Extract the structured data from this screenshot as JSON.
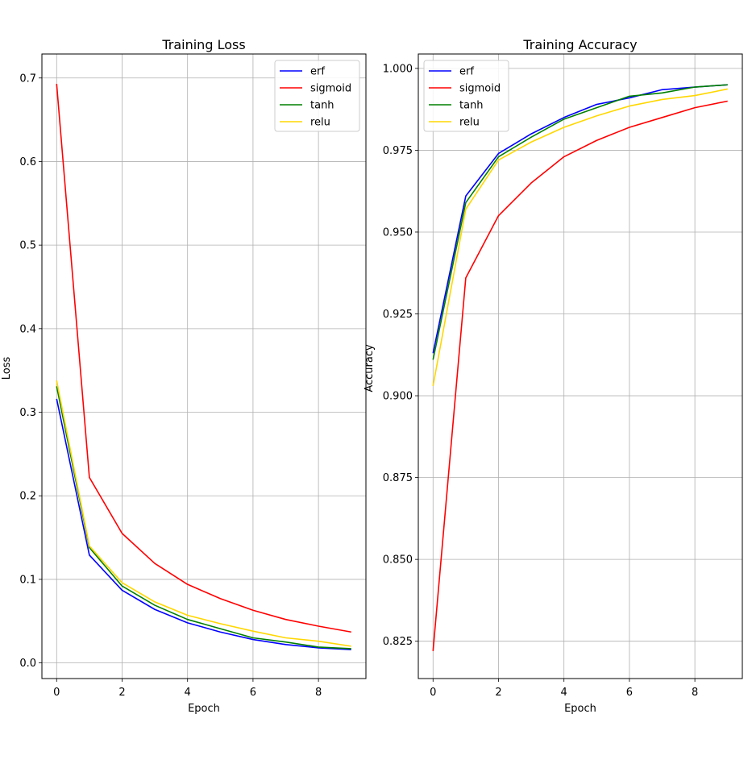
{
  "figure": {
    "background": "#ffffff"
  },
  "chart_data": [
    {
      "type": "line",
      "title": "Training Loss",
      "xlabel": "Epoch",
      "ylabel": "Loss",
      "xlim": [
        -0.45,
        9.45
      ],
      "ylim": [
        -0.0187,
        0.7287
      ],
      "xticks": [
        0,
        2,
        4,
        6,
        8
      ],
      "yticks": [
        0.0,
        0.1,
        0.2,
        0.3,
        0.4,
        0.5,
        0.6,
        0.7
      ],
      "yticklabels": [
        "0.0",
        "0.1",
        "0.2",
        "0.3",
        "0.4",
        "0.5",
        "0.6",
        "0.7"
      ],
      "grid": true,
      "legend": "top-right",
      "x": [
        0,
        1,
        2,
        3,
        4,
        5,
        6,
        7,
        8,
        9
      ],
      "series": [
        {
          "name": "erf",
          "color": "#0000ff",
          "values": [
            0.316,
            0.129,
            0.087,
            0.064,
            0.048,
            0.037,
            0.028,
            0.022,
            0.018,
            0.016
          ]
        },
        {
          "name": "sigmoid",
          "color": "#ff0000",
          "values": [
            0.693,
            0.222,
            0.155,
            0.119,
            0.094,
            0.077,
            0.063,
            0.052,
            0.044,
            0.037
          ]
        },
        {
          "name": "tanh",
          "color": "#008000",
          "values": [
            0.331,
            0.138,
            0.092,
            0.069,
            0.052,
            0.041,
            0.03,
            0.025,
            0.019,
            0.017
          ]
        },
        {
          "name": "relu",
          "color": "#ffd700",
          "values": [
            0.338,
            0.14,
            0.096,
            0.073,
            0.057,
            0.047,
            0.038,
            0.03,
            0.026,
            0.02
          ]
        }
      ]
    },
    {
      "type": "line",
      "title": "Training Accuracy",
      "xlabel": "Epoch",
      "ylabel": "Accuracy",
      "xlim": [
        -0.45,
        9.45
      ],
      "ylim": [
        0.8136,
        1.0044
      ],
      "xticks": [
        0,
        2,
        4,
        6,
        8
      ],
      "yticks": [
        0.825,
        0.85,
        0.875,
        0.9,
        0.925,
        0.95,
        0.975,
        1.0
      ],
      "yticklabels": [
        "0.825",
        "0.850",
        "0.875",
        "0.900",
        "0.925",
        "0.950",
        "0.975",
        "1.000"
      ],
      "grid": true,
      "legend": "top-left",
      "x": [
        0,
        1,
        2,
        3,
        4,
        5,
        6,
        7,
        8,
        9
      ],
      "series": [
        {
          "name": "erf",
          "color": "#0000ff",
          "values": [
            0.913,
            0.961,
            0.974,
            0.98,
            0.985,
            0.989,
            0.991,
            0.9935,
            0.9943,
            0.995
          ]
        },
        {
          "name": "sigmoid",
          "color": "#ff0000",
          "values": [
            0.822,
            0.936,
            0.955,
            0.965,
            0.973,
            0.978,
            0.982,
            0.985,
            0.988,
            0.99
          ]
        },
        {
          "name": "tanh",
          "color": "#008000",
          "values": [
            0.911,
            0.959,
            0.973,
            0.979,
            0.9845,
            0.988,
            0.9915,
            0.9925,
            0.9943,
            0.995
          ]
        },
        {
          "name": "relu",
          "color": "#ffd700",
          "values": [
            0.903,
            0.957,
            0.972,
            0.9775,
            0.982,
            0.9855,
            0.9885,
            0.9905,
            0.9917,
            0.9937
          ]
        }
      ]
    }
  ]
}
